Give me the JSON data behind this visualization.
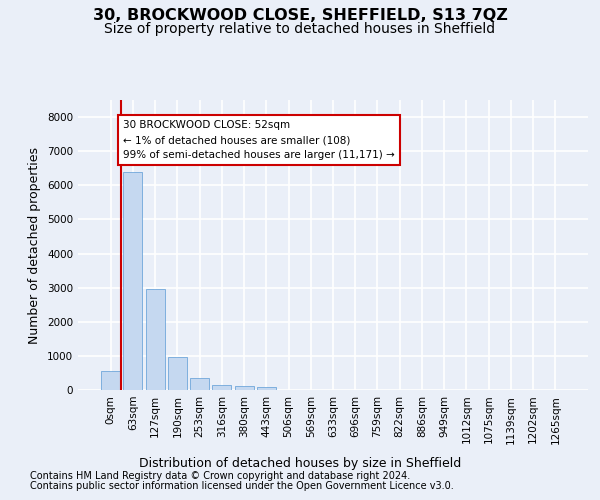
{
  "title": "30, BROCKWOOD CLOSE, SHEFFIELD, S13 7QZ",
  "subtitle": "Size of property relative to detached houses in Sheffield",
  "xlabel": "Distribution of detached houses by size in Sheffield",
  "ylabel": "Number of detached properties",
  "bar_color": "#c5d8f0",
  "bar_edge_color": "#5b9bd5",
  "annotation_line_color": "#cc0000",
  "annotation_text_line1": "30 BROCKWOOD CLOSE: 52sqm",
  "annotation_text_line2": "← 1% of detached houses are smaller (108)",
  "annotation_text_line3": "99% of semi-detached houses are larger (11,171) →",
  "footer_line1": "Contains HM Land Registry data © Crown copyright and database right 2024.",
  "footer_line2": "Contains public sector information licensed under the Open Government Licence v3.0.",
  "categories": [
    "0sqm",
    "63sqm",
    "127sqm",
    "190sqm",
    "253sqm",
    "316sqm",
    "380sqm",
    "443sqm",
    "506sqm",
    "569sqm",
    "633sqm",
    "696sqm",
    "759sqm",
    "822sqm",
    "886sqm",
    "949sqm",
    "1012sqm",
    "1075sqm",
    "1139sqm",
    "1202sqm",
    "1265sqm"
  ],
  "values": [
    550,
    6400,
    2950,
    970,
    340,
    160,
    110,
    75,
    0,
    0,
    0,
    0,
    0,
    0,
    0,
    0,
    0,
    0,
    0,
    0,
    0
  ],
  "ylim": [
    0,
    8500
  ],
  "yticks": [
    0,
    1000,
    2000,
    3000,
    4000,
    5000,
    6000,
    7000,
    8000
  ],
  "bg_color": "#eaeff8",
  "grid_color": "#ffffff",
  "title_fontsize": 11.5,
  "subtitle_fontsize": 10,
  "label_fontsize": 9,
  "tick_fontsize": 7.5,
  "footer_fontsize": 7
}
